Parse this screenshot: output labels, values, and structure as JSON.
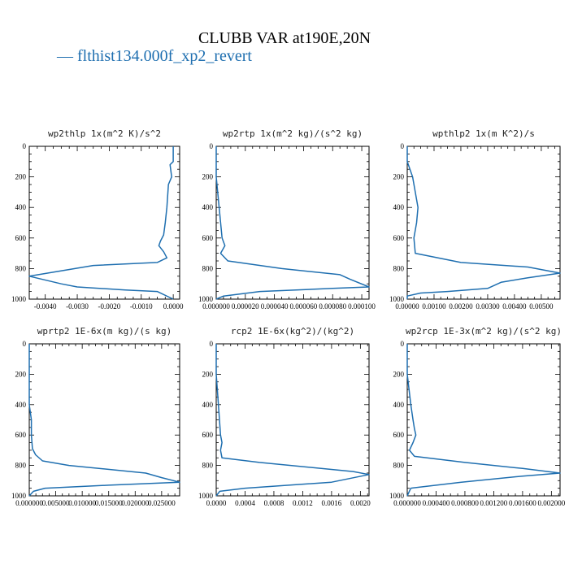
{
  "title": "CLUBB VAR at190E,20N",
  "legend": {
    "label": "— flthist134.000f_xp2_revert",
    "color": "#1f6fb0"
  },
  "chart_data": [
    {
      "type": "line",
      "title": "wp2thlp  1x(m^2 K)/s^2",
      "xlim": [
        -0.0045,
        0.0002
      ],
      "ylim": [
        1000,
        0
      ],
      "xticks": [
        "-0.0040",
        "-0.0030",
        "-0.0020",
        "-0.0010",
        "0.0000"
      ],
      "xtick_values": [
        -0.004,
        -0.003,
        -0.002,
        -0.001,
        0.0
      ],
      "yticks": [
        0,
        200,
        400,
        600,
        800,
        1000
      ],
      "series": [
        {
          "x": [
            0.0,
            0.0,
            -0.0001,
            -5e-05,
            -0.00015,
            -0.0002,
            -0.00025,
            -0.0003,
            -0.0004,
            -0.00045,
            -0.0003,
            -0.0002,
            -0.0005,
            -0.0025,
            -0.0045,
            -0.0035,
            -0.003,
            -0.0015,
            -0.0005,
            0.0
          ],
          "y": [
            0,
            100,
            120,
            200,
            250,
            400,
            500,
            580,
            620,
            650,
            690,
            730,
            760,
            780,
            850,
            900,
            920,
            940,
            950,
            1000
          ]
        }
      ]
    },
    {
      "type": "line",
      "title": "wp2rtp  1x(m^2 kg)/(s^2 kg)",
      "xlim": [
        0.0,
        0.000105
      ],
      "ylim": [
        1000,
        0
      ],
      "xticks": [
        "0.000000",
        "0.000020",
        "0.000040",
        "0.000060",
        "0.000080",
        "0.000100"
      ],
      "xtick_values": [
        0.0,
        2e-05,
        4e-05,
        6e-05,
        8e-05,
        0.0001
      ],
      "yticks": [
        0,
        200,
        400,
        600,
        800,
        1000
      ],
      "series": [
        {
          "x": [
            0.0,
            0.0,
            2e-06,
            4e-06,
            6e-06,
            3e-06,
            8e-06,
            4.5e-05,
            8.5e-05,
            9.2e-05,
            0.000105,
            8e-05,
            3e-05,
            5e-06,
            0.0
          ],
          "y": [
            0,
            200,
            400,
            600,
            650,
            700,
            750,
            800,
            840,
            870,
            920,
            930,
            950,
            980,
            1000
          ]
        }
      ]
    },
    {
      "type": "line",
      "title": "wpthlp2  1x(m K^2)/s",
      "xlim": [
        0.0,
        0.0057
      ],
      "ylim": [
        1000,
        0
      ],
      "xticks": [
        "0.00000",
        "0.00100",
        "0.00200",
        "0.00300",
        "0.00400",
        "0.00500"
      ],
      "xtick_values": [
        0.0,
        0.001,
        0.002,
        0.003,
        0.004,
        0.005
      ],
      "yticks": [
        0,
        200,
        400,
        600,
        800,
        1000
      ],
      "series": [
        {
          "x": [
            0.0,
            0.0,
            0.0002,
            0.0003,
            0.0004,
            0.00035,
            0.00025,
            0.0003,
            0.002,
            0.0045,
            0.0057,
            0.0045,
            0.0035,
            0.003,
            0.0015,
            0.0005,
            0.0,
            0.0
          ],
          "y": [
            0,
            100,
            200,
            300,
            400,
            500,
            600,
            700,
            760,
            790,
            830,
            860,
            890,
            930,
            950,
            960,
            980,
            1000
          ]
        }
      ]
    },
    {
      "type": "line",
      "title": "wprtp2  1E-6x(m kg)/(s kg)",
      "xlim": [
        0.0,
        0.0284
      ],
      "ylim": [
        1000,
        0
      ],
      "xticks": [
        "0.000000",
        "0.005000",
        "0.010000",
        "0.015000",
        "0.020000",
        "0.025000"
      ],
      "xtick_values": [
        0.0,
        0.005,
        0.01,
        0.015,
        0.02,
        0.025
      ],
      "yticks": [
        0,
        200,
        400,
        600,
        800,
        1000
      ],
      "series": [
        {
          "x": [
            0.0,
            0.0,
            0.0004,
            0.0004,
            0.0006,
            0.0012,
            0.0025,
            0.0075,
            0.022,
            0.025,
            0.0284,
            0.015,
            0.003,
            0.0008,
            0.0
          ],
          "y": [
            0,
            400,
            500,
            600,
            690,
            730,
            770,
            800,
            850,
            880,
            910,
            930,
            950,
            970,
            1000
          ]
        }
      ]
    },
    {
      "type": "line",
      "title": "rcp2  1E-6x(kg^2)/(kg^2)",
      "xlim": [
        0.0,
        0.00212
      ],
      "ylim": [
        1000,
        0
      ],
      "xticks": [
        "0.0000",
        "0.0004",
        "0.0008",
        "0.0012",
        "0.0016",
        "0.0020"
      ],
      "xtick_values": [
        0.0,
        0.0004,
        0.0008,
        0.0012,
        0.0016,
        0.002
      ],
      "yticks": [
        0,
        200,
        400,
        600,
        800,
        1000
      ],
      "series": [
        {
          "x": [
            0.0,
            0.0,
            3e-05,
            6e-05,
            8e-05,
            6e-05,
            8e-05,
            0.0006,
            0.0019,
            0.00212,
            0.0016,
            0.0004,
            5e-05,
            0.0
          ],
          "y": [
            0,
            200,
            400,
            600,
            650,
            700,
            750,
            780,
            840,
            860,
            910,
            950,
            970,
            1000
          ]
        }
      ]
    },
    {
      "type": "line",
      "title": "wp2rcp  1E-3x(m^2 kg)/(s^2 kg)",
      "xlim": [
        0.0,
        0.00212
      ],
      "ylim": [
        1000,
        0
      ],
      "xticks": [
        "0.000000",
        "0.000400",
        "0.000800",
        "0.001200",
        "0.001600",
        "0.002000"
      ],
      "xtick_values": [
        0.0,
        0.0004,
        0.0008,
        0.0012,
        0.0016,
        0.002
      ],
      "yticks": [
        0,
        200,
        400,
        600,
        800,
        1000
      ],
      "series": [
        {
          "x": [
            0.0,
            0.0,
            5e-05,
            8e-05,
            0.0001,
            0.00012,
            8e-05,
            3e-05,
            0.0001,
            0.0008,
            0.0016,
            0.00212,
            0.0016,
            0.00075,
            5e-05,
            0.0
          ],
          "y": [
            0,
            200,
            400,
            500,
            560,
            600,
            650,
            700,
            740,
            780,
            820,
            850,
            870,
            910,
            950,
            1000
          ]
        }
      ]
    }
  ]
}
